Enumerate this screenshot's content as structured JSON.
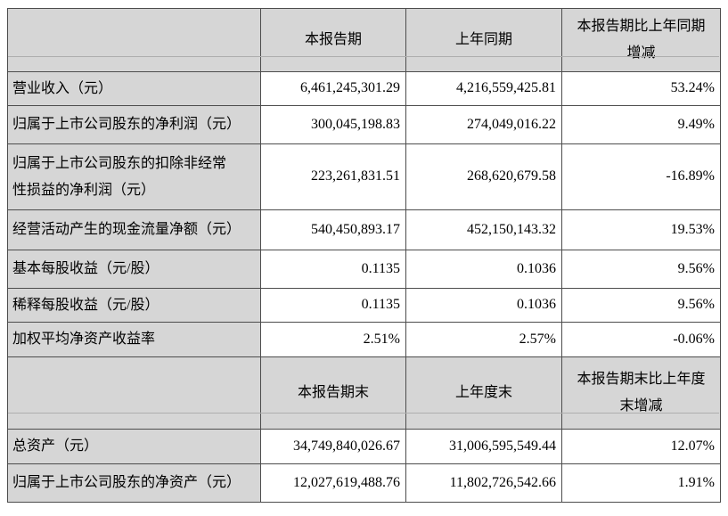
{
  "table": {
    "colors": {
      "shading_bg": "#d6d6d6",
      "border": "#4d4d4d",
      "data_bg": "#ffffff"
    },
    "sections": [
      {
        "columns": {
          "current": "本报告期",
          "prior": "上年同期",
          "change": "本报告期比上年同期\n增减"
        },
        "rows": [
          {
            "label": "营业收入（元）",
            "current": "6,461,245,301.29",
            "prior": "4,216,559,425.81",
            "change": "53.24%"
          },
          {
            "label": "归属于上市公司股东的净利润（元）",
            "current": "300,045,198.83",
            "prior": "274,049,016.22",
            "change": "9.49%"
          },
          {
            "label": "归属于上市公司股东的扣除非经常\n性损益的净利润（元）",
            "current": "223,261,831.51",
            "prior": "268,620,679.58",
            "change": "-16.89%"
          },
          {
            "label": "经营活动产生的现金流量净额（元）",
            "current": "540,450,893.17",
            "prior": "452,150,143.32",
            "change": "19.53%"
          },
          {
            "label": "基本每股收益（元/股）",
            "current": "0.1135",
            "prior": "0.1036",
            "change": "9.56%"
          },
          {
            "label": "稀释每股收益（元/股）",
            "current": "0.1135",
            "prior": "0.1036",
            "change": "9.56%"
          },
          {
            "label": "加权平均净资产收益率",
            "current": "2.51%",
            "prior": "2.57%",
            "change": "-0.06%"
          }
        ]
      },
      {
        "columns": {
          "current": "本报告期末",
          "prior": "上年度末",
          "change": "本报告期末比上年度\n末增减"
        },
        "rows": [
          {
            "label": "总资产（元）",
            "current": "34,749,840,026.67",
            "prior": "31,006,595,549.44",
            "change": "12.07%"
          },
          {
            "label": "归属于上市公司股东的净资产（元）",
            "current": "12,027,619,488.76",
            "prior": "11,802,726,542.66",
            "change": "1.91%"
          }
        ]
      }
    ]
  }
}
